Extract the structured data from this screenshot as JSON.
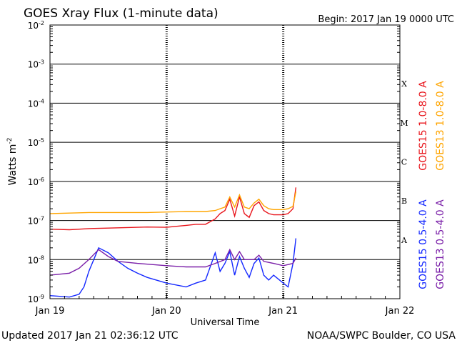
{
  "header": {
    "title": "GOES Xray Flux (1-minute data)",
    "begin": "Begin:  2017 Jan 19 0000 UTC"
  },
  "footer": {
    "updated": "Updated 2017 Jan 21 02:36:12 UTC",
    "credit": "NOAA/SWPC Boulder, CO USA"
  },
  "colors": {
    "goes15_long": "#e8141b",
    "goes13_long": "#ffa500",
    "goes15_short": "#1428ff",
    "goes13_short": "#7a1fa8",
    "gridline": "#000000"
  },
  "chart_data": {
    "type": "line",
    "title": "GOES Xray Flux (1-minute data)",
    "xlabel": "Universal Time",
    "ylabel": "Watts m⁻²",
    "yscale": "log",
    "ylim": [
      1e-09,
      0.01
    ],
    "xlim": [
      "2017-01-19T00:00",
      "2017-01-22T00:00"
    ],
    "x_ticks": [
      {
        "x": "2017-01-19T00:00",
        "label": "Jan 19"
      },
      {
        "x": "2017-01-20T00:00",
        "label": "Jan 20"
      },
      {
        "x": "2017-01-21T00:00",
        "label": "Jan 21"
      },
      {
        "x": "2017-01-22T00:00",
        "label": "Jan 22"
      }
    ],
    "y_ticks": [
      {
        "value": 1e-09,
        "base": "10",
        "exp": "-9"
      },
      {
        "value": 1e-08,
        "base": "10",
        "exp": "-8"
      },
      {
        "value": 1e-07,
        "base": "10",
        "exp": "-7"
      },
      {
        "value": 1e-06,
        "base": "10",
        "exp": "-6"
      },
      {
        "value": 1e-05,
        "base": "10",
        "exp": "-5"
      },
      {
        "value": 0.0001,
        "base": "10",
        "exp": "-4"
      },
      {
        "value": 0.001,
        "base": "10",
        "exp": "-3"
      },
      {
        "value": 0.01,
        "base": "10",
        "exp": "-2"
      }
    ],
    "flare_classes": [
      {
        "label": "A",
        "low": 1e-08,
        "high": 1e-07
      },
      {
        "label": "B",
        "low": 1e-07,
        "high": 1e-06
      },
      {
        "label": "C",
        "low": 1e-06,
        "high": 1e-05
      },
      {
        "label": "M",
        "low": 1e-05,
        "high": 0.0001
      },
      {
        "label": "X",
        "low": 0.0001,
        "high": 0.001
      }
    ],
    "grid": true,
    "legend_position": "right",
    "series": [
      {
        "name": "GOES15 1.0-8.0 A",
        "color": "#e8141b",
        "points": [
          [
            "2017-01-19T00:00",
            6e-08
          ],
          [
            "2017-01-19T04:00",
            5.8e-08
          ],
          [
            "2017-01-19T08:00",
            6.2e-08
          ],
          [
            "2017-01-19T12:00",
            6.4e-08
          ],
          [
            "2017-01-19T16:00",
            6.6e-08
          ],
          [
            "2017-01-19T20:00",
            6.8e-08
          ],
          [
            "2017-01-20T00:00",
            6.7e-08
          ],
          [
            "2017-01-20T04:00",
            7.5e-08
          ],
          [
            "2017-01-20T06:00",
            8e-08
          ],
          [
            "2017-01-20T08:00",
            8e-08
          ],
          [
            "2017-01-20T10:00",
            1.1e-07
          ],
          [
            "2017-01-20T11:00",
            1.5e-07
          ],
          [
            "2017-01-20T12:00",
            1.8e-07
          ],
          [
            "2017-01-20T13:00",
            3.5e-07
          ],
          [
            "2017-01-20T14:00",
            1.3e-07
          ],
          [
            "2017-01-20T15:00",
            4e-07
          ],
          [
            "2017-01-20T16:00",
            1.5e-07
          ],
          [
            "2017-01-20T17:00",
            1.2e-07
          ],
          [
            "2017-01-20T18:00",
            2.4e-07
          ],
          [
            "2017-01-20T19:00",
            3e-07
          ],
          [
            "2017-01-20T20:00",
            1.8e-07
          ],
          [
            "2017-01-20T21:00",
            1.5e-07
          ],
          [
            "2017-01-20T22:00",
            1.4e-07
          ],
          [
            "2017-01-21T00:00",
            1.4e-07
          ],
          [
            "2017-01-21T01:00",
            1.5e-07
          ],
          [
            "2017-01-21T02:00",
            2e-07
          ],
          [
            "2017-01-21T02:36",
            7e-07
          ]
        ]
      },
      {
        "name": "GOES13 1.0-8.0 A",
        "color": "#ffa500",
        "points": [
          [
            "2017-01-19T00:00",
            1.5e-07
          ],
          [
            "2017-01-19T04:00",
            1.55e-07
          ],
          [
            "2017-01-19T08:00",
            1.6e-07
          ],
          [
            "2017-01-19T12:00",
            1.6e-07
          ],
          [
            "2017-01-19T16:00",
            1.6e-07
          ],
          [
            "2017-01-19T20:00",
            1.6e-07
          ],
          [
            "2017-01-20T00:00",
            1.65e-07
          ],
          [
            "2017-01-20T04:00",
            1.7e-07
          ],
          [
            "2017-01-20T08:00",
            1.7e-07
          ],
          [
            "2017-01-20T10:00",
            1.8e-07
          ],
          [
            "2017-01-20T11:00",
            2e-07
          ],
          [
            "2017-01-20T12:00",
            2.2e-07
          ],
          [
            "2017-01-20T13:00",
            4e-07
          ],
          [
            "2017-01-20T14:00",
            2.2e-07
          ],
          [
            "2017-01-20T15:00",
            4.5e-07
          ],
          [
            "2017-01-20T16:00",
            2.2e-07
          ],
          [
            "2017-01-20T17:00",
            2e-07
          ],
          [
            "2017-01-20T18:00",
            2.8e-07
          ],
          [
            "2017-01-20T19:00",
            3.5e-07
          ],
          [
            "2017-01-20T20:00",
            2.4e-07
          ],
          [
            "2017-01-20T21:00",
            2e-07
          ],
          [
            "2017-01-20T22:00",
            1.9e-07
          ],
          [
            "2017-01-21T00:00",
            1.9e-07
          ],
          [
            "2017-01-21T01:00",
            2e-07
          ],
          [
            "2017-01-21T02:00",
            2.3e-07
          ],
          [
            "2017-01-21T02:36",
            5.5e-07
          ]
        ]
      },
      {
        "name": "GOES15 0.5-4.0 A",
        "color": "#1428ff",
        "points": [
          [
            "2017-01-19T00:00",
            1.2e-09
          ],
          [
            "2017-01-19T04:00",
            1.1e-09
          ],
          [
            "2017-01-19T06:00",
            1.3e-09
          ],
          [
            "2017-01-19T07:00",
            2e-09
          ],
          [
            "2017-01-19T08:00",
            5e-09
          ],
          [
            "2017-01-19T09:00",
            1e-08
          ],
          [
            "2017-01-19T10:00",
            2e-08
          ],
          [
            "2017-01-19T12:00",
            1.5e-08
          ],
          [
            "2017-01-19T14:00",
            9e-09
          ],
          [
            "2017-01-19T16:00",
            6e-09
          ],
          [
            "2017-01-19T18:00",
            4.5e-09
          ],
          [
            "2017-01-19T20:00",
            3.5e-09
          ],
          [
            "2017-01-20T00:00",
            2.5e-09
          ],
          [
            "2017-01-20T04:00",
            2e-09
          ],
          [
            "2017-01-20T06:00",
            2.5e-09
          ],
          [
            "2017-01-20T08:00",
            3e-09
          ],
          [
            "2017-01-20T10:00",
            1.5e-08
          ],
          [
            "2017-01-20T11:00",
            5e-09
          ],
          [
            "2017-01-20T12:00",
            8e-09
          ],
          [
            "2017-01-20T13:00",
            1.6e-08
          ],
          [
            "2017-01-20T14:00",
            4e-09
          ],
          [
            "2017-01-20T15:00",
            1.2e-08
          ],
          [
            "2017-01-20T16:00",
            6e-09
          ],
          [
            "2017-01-20T17:00",
            3.5e-09
          ],
          [
            "2017-01-20T18:00",
            8e-09
          ],
          [
            "2017-01-20T19:00",
            1.1e-08
          ],
          [
            "2017-01-20T20:00",
            4e-09
          ],
          [
            "2017-01-20T21:00",
            3e-09
          ],
          [
            "2017-01-20T22:00",
            4e-09
          ],
          [
            "2017-01-21T00:00",
            2.5e-09
          ],
          [
            "2017-01-21T01:00",
            2e-09
          ],
          [
            "2017-01-21T02:00",
            8e-09
          ],
          [
            "2017-01-21T02:36",
            3.5e-08
          ]
        ]
      },
      {
        "name": "GOES13 0.5-4.0 A",
        "color": "#7a1fa8",
        "points": [
          [
            "2017-01-19T00:00",
            4e-09
          ],
          [
            "2017-01-19T04:00",
            4.5e-09
          ],
          [
            "2017-01-19T06:00",
            6e-09
          ],
          [
            "2017-01-19T08:00",
            1e-08
          ],
          [
            "2017-01-19T10:00",
            1.8e-08
          ],
          [
            "2017-01-19T12:00",
            1.2e-08
          ],
          [
            "2017-01-19T14:00",
            9e-09
          ],
          [
            "2017-01-19T18:00",
            8e-09
          ],
          [
            "2017-01-20T00:00",
            7e-09
          ],
          [
            "2017-01-20T04:00",
            6.5e-09
          ],
          [
            "2017-01-20T08:00",
            6.5e-09
          ],
          [
            "2017-01-20T10:00",
            8e-09
          ],
          [
            "2017-01-20T12:00",
            1e-08
          ],
          [
            "2017-01-20T13:00",
            1.8e-08
          ],
          [
            "2017-01-20T14:00",
            1e-08
          ],
          [
            "2017-01-20T15:00",
            1.6e-08
          ],
          [
            "2017-01-20T16:00",
            1e-08
          ],
          [
            "2017-01-20T18:00",
            1e-08
          ],
          [
            "2017-01-20T19:00",
            1.3e-08
          ],
          [
            "2017-01-20T20:00",
            9e-09
          ],
          [
            "2017-01-20T22:00",
            8e-09
          ],
          [
            "2017-01-21T00:00",
            7e-09
          ],
          [
            "2017-01-21T02:00",
            8e-09
          ],
          [
            "2017-01-21T02:36",
            1.1e-08
          ]
        ]
      }
    ]
  }
}
